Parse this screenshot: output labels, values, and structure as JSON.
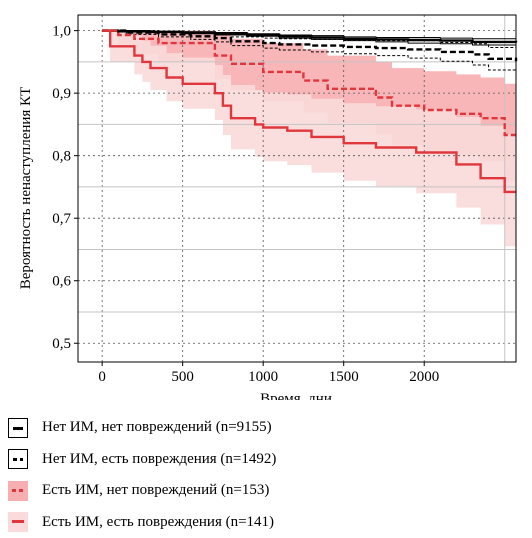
{
  "chart_data": {
    "type": "line",
    "subtype": "kaplan-meier survival curves with confidence bands",
    "xlabel": "Время, дни",
    "ylabel": "Вероятность ненаступления КТ",
    "xlim": [
      -150,
      2570
    ],
    "ylim": [
      0.47,
      1.025
    ],
    "xticks": [
      0,
      500,
      1000,
      1500,
      2000
    ],
    "yticks": [
      0.5,
      0.6,
      0.7,
      0.8,
      0.9,
      1.0
    ],
    "xtick_labels": [
      "0",
      "500",
      "1000",
      "1500",
      "2000"
    ],
    "ytick_labels": [
      "0,5",
      "0,6",
      "0,7",
      "0,8",
      "0,9",
      "1,0"
    ],
    "grid": true,
    "legend_position": "bottom",
    "series": [
      {
        "name": "Нет ИМ, нет повреждений (n=9155)",
        "color": "#000000",
        "line": "solid",
        "band_color": "none",
        "x": [
          0,
          100,
          300,
          500,
          700,
          900,
          1100,
          1300,
          1500,
          1700,
          1900,
          2100,
          2300,
          2570
        ],
        "y": [
          1.0,
          0.999,
          0.998,
          0.997,
          0.995,
          0.993,
          0.991,
          0.989,
          0.987,
          0.986,
          0.985,
          0.984,
          0.982,
          0.981
        ],
        "ci_lower": [
          1.0,
          0.998,
          0.997,
          0.995,
          0.993,
          0.991,
          0.988,
          0.986,
          0.984,
          0.982,
          0.98,
          0.979,
          0.977,
          0.975
        ],
        "ci_upper": [
          1.0,
          1.0,
          0.999,
          0.998,
          0.997,
          0.995,
          0.993,
          0.992,
          0.99,
          0.989,
          0.989,
          0.988,
          0.987,
          0.986
        ]
      },
      {
        "name": "Нет ИМ, есть повреждения (n=1492)",
        "color": "#000000",
        "line": "dashed",
        "band_color": "none",
        "x": [
          0,
          150,
          350,
          550,
          700,
          800,
          1000,
          1100,
          1300,
          1500,
          1700,
          1900,
          2100,
          2300,
          2400,
          2570
        ],
        "y": [
          1.0,
          0.997,
          0.994,
          0.991,
          0.988,
          0.983,
          0.98,
          0.978,
          0.976,
          0.974,
          0.972,
          0.97,
          0.966,
          0.962,
          0.955,
          0.951
        ],
        "ci_lower": [
          1.0,
          0.994,
          0.99,
          0.986,
          0.982,
          0.976,
          0.972,
          0.969,
          0.966,
          0.963,
          0.96,
          0.956,
          0.951,
          0.945,
          0.937,
          0.931
        ],
        "ci_upper": [
          1.0,
          1.0,
          0.998,
          0.996,
          0.994,
          0.99,
          0.988,
          0.987,
          0.986,
          0.985,
          0.984,
          0.984,
          0.981,
          0.979,
          0.973,
          0.97
        ]
      },
      {
        "name": "Есть ИМ, нет повреждений (n=153)",
        "color": "#e0373c",
        "line": "dashed",
        "band_color": "#f7aeb0",
        "x": [
          0,
          100,
          200,
          350,
          700,
          800,
          1000,
          1250,
          1400,
          1700,
          1800,
          2000,
          2200,
          2350,
          2500,
          2570
        ],
        "y": [
          1.0,
          0.993,
          0.987,
          0.98,
          0.96,
          0.947,
          0.934,
          0.92,
          0.907,
          0.893,
          0.88,
          0.873,
          0.867,
          0.86,
          0.833,
          0.833
        ],
        "ci_lower": [
          1.0,
          0.975,
          0.962,
          0.95,
          0.922,
          0.905,
          0.887,
          0.869,
          0.852,
          0.834,
          0.817,
          0.808,
          0.8,
          0.791,
          0.759,
          0.759
        ],
        "ci_upper": [
          1.0,
          1.0,
          1.0,
          1.0,
          0.993,
          0.987,
          0.98,
          0.97,
          0.96,
          0.95,
          0.94,
          0.935,
          0.93,
          0.925,
          0.915,
          0.915
        ]
      },
      {
        "name": "Есть ИМ, есть повреждения (n=141)",
        "color": "#e0373c",
        "line": "solid",
        "band_color": "#fadada",
        "x": [
          0,
          50,
          200,
          250,
          300,
          400,
          500,
          700,
          750,
          800,
          950,
          1000,
          1150,
          1300,
          1500,
          1700,
          1950,
          2200,
          2350,
          2500,
          2570
        ],
        "y": [
          1.0,
          0.975,
          0.96,
          0.95,
          0.94,
          0.925,
          0.915,
          0.9,
          0.88,
          0.86,
          0.85,
          0.845,
          0.84,
          0.83,
          0.82,
          0.813,
          0.805,
          0.786,
          0.764,
          0.742,
          0.742
        ],
        "ci_lower": [
          1.0,
          0.95,
          0.93,
          0.918,
          0.905,
          0.887,
          0.875,
          0.857,
          0.833,
          0.81,
          0.798,
          0.791,
          0.785,
          0.773,
          0.76,
          0.751,
          0.74,
          0.717,
          0.69,
          0.655,
          0.655
        ],
        "ci_upper": [
          1.0,
          1.0,
          0.992,
          0.984,
          0.976,
          0.964,
          0.957,
          0.945,
          0.929,
          0.913,
          0.905,
          0.901,
          0.898,
          0.891,
          0.884,
          0.879,
          0.874,
          0.862,
          0.848,
          0.834,
          0.834
        ]
      }
    ]
  }
}
